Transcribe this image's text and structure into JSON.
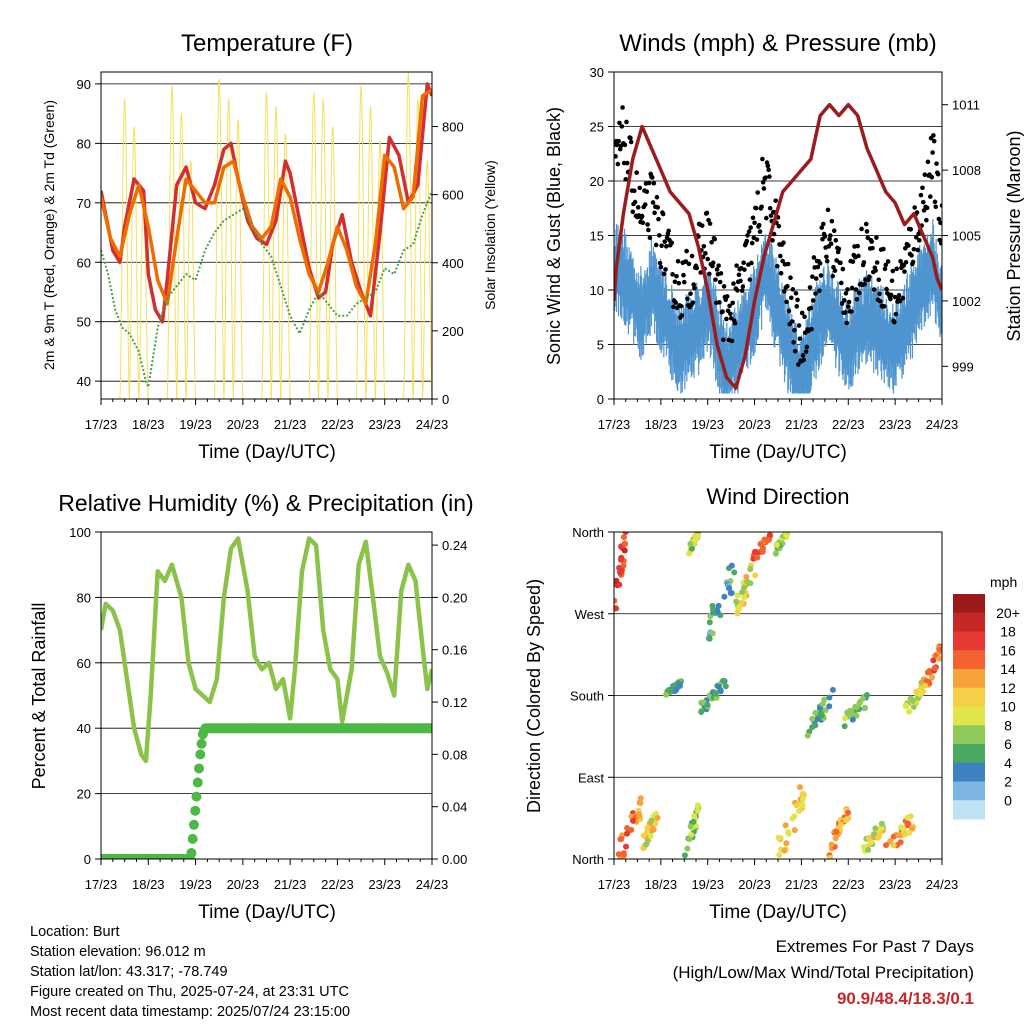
{
  "x_tick_labels": [
    "17/23",
    "18/23",
    "19/23",
    "20/23",
    "21/23",
    "22/23",
    "23/23",
    "24/23"
  ],
  "info": {
    "location": "Location: Burt",
    "elevation": "Station elevation: 96.012 m",
    "latlon": "Station lat/lon: 43.317; -78.749",
    "created": "Figure created on Thu, 2025-07-24, at 23:31 UTC",
    "timestamp": "Most recent data timestamp: 2025/07/24 23:15:00"
  },
  "extremes": {
    "title": "Extremes For Past 7 Days",
    "subtitle": "(High/Low/Max Wind/Total Precipitation)",
    "values": "90.9/48.4/18.3/0.1"
  },
  "chart_data": [
    {
      "type": "line",
      "title": "Temperature (F)",
      "xlabel": "Time (Day/UTC)",
      "ylabel": "2m & 9m T (Red, Orange) & 2m Td (Green)",
      "y2label": "Solar Insolation (Yellow)",
      "xlim": [
        0,
        7
      ],
      "ylim": [
        37,
        92
      ],
      "y2lim": [
        0,
        960
      ],
      "yticks": [
        40,
        50,
        60,
        70,
        80,
        90
      ],
      "y2ticks": [
        0,
        200,
        400,
        600,
        800
      ],
      "grid": true,
      "series": [
        {
          "key": "t2m",
          "color": "#d32f2f",
          "x": [
            0,
            0.1,
            0.25,
            0.4,
            0.5,
            0.7,
            0.9,
            1.0,
            1.15,
            1.3,
            1.4,
            1.6,
            1.8,
            2.0,
            2.2,
            2.4,
            2.6,
            2.75,
            2.9,
            3.1,
            3.3,
            3.5,
            3.7,
            3.9,
            4.0,
            4.2,
            4.4,
            4.6,
            4.75,
            4.9,
            5.1,
            5.3,
            5.5,
            5.7,
            5.9,
            6.1,
            6.3,
            6.5,
            6.7,
            6.9,
            7.0
          ],
          "y": [
            72,
            68,
            62,
            60,
            66,
            74,
            72,
            58,
            52,
            50,
            57,
            73,
            76,
            70,
            69,
            73,
            79,
            80,
            74,
            67,
            64,
            63,
            67,
            77,
            75,
            67,
            59,
            54,
            55,
            63,
            68,
            60,
            55,
            51,
            65,
            81,
            78,
            70,
            73,
            90,
            88
          ]
        },
        {
          "key": "t9m",
          "color": "#ef6c00",
          "x": [
            0,
            0.2,
            0.4,
            0.6,
            0.8,
            1.0,
            1.2,
            1.4,
            1.6,
            1.8,
            2.0,
            2.2,
            2.4,
            2.6,
            2.8,
            3.0,
            3.2,
            3.4,
            3.6,
            3.8,
            4.0,
            4.2,
            4.4,
            4.6,
            4.8,
            5.0,
            5.2,
            5.4,
            5.6,
            5.8,
            6.0,
            6.2,
            6.4,
            6.6,
            6.8,
            7.0
          ],
          "y": [
            71,
            64,
            61,
            68,
            73,
            66,
            57,
            53,
            64,
            74,
            72,
            70,
            70,
            76,
            77,
            71,
            66,
            64,
            66,
            74,
            71,
            64,
            58,
            55,
            60,
            66,
            62,
            56,
            53,
            63,
            78,
            76,
            69,
            71,
            88,
            89
          ]
        },
        {
          "key": "td",
          "color": "#43a047",
          "x": [
            0,
            0.15,
            0.3,
            0.45,
            0.6,
            0.8,
            0.95,
            1.0,
            1.2,
            1.4,
            1.6,
            1.8,
            2.0,
            2.2,
            2.4,
            2.6,
            2.8,
            3.0,
            3.2,
            3.4,
            3.6,
            3.8,
            4.0,
            4.2,
            4.4,
            4.6,
            4.8,
            5.0,
            5.2,
            5.4,
            5.6,
            5.8,
            6.0,
            6.2,
            6.4,
            6.6,
            6.8,
            7.0
          ],
          "y": [
            62,
            58,
            52,
            49,
            48,
            45,
            40,
            39,
            49,
            54,
            56,
            58,
            57,
            62,
            65,
            67,
            68,
            69,
            66,
            63,
            61,
            56,
            51,
            48,
            52,
            55,
            53,
            51,
            51,
            53,
            54,
            55,
            59,
            58,
            62,
            63,
            68,
            72
          ]
        }
      ],
      "solar": {
        "key": "solar",
        "color": "#f5e05a",
        "days": [
          {
            "start": 0.4,
            "end": 1.0,
            "peaks": [
              880,
              800,
              600
            ]
          },
          {
            "start": 1.4,
            "end": 2.0,
            "peaks": [
              920,
              840,
              700
            ]
          },
          {
            "start": 2.4,
            "end": 3.0,
            "peaks": [
              940,
              880,
              820
            ]
          },
          {
            "start": 3.4,
            "end": 4.0,
            "peaks": [
              900,
              860,
              780
            ]
          },
          {
            "start": 4.4,
            "end": 5.0,
            "peaks": [
              900,
              880,
              800
            ]
          },
          {
            "start": 5.4,
            "end": 6.0,
            "peaks": [
              920,
              860,
              760
            ]
          },
          {
            "start": 6.4,
            "end": 7.0,
            "peaks": [
              960,
              880,
              700
            ]
          }
        ]
      }
    },
    {
      "type": "scatter",
      "title": "Winds (mph) & Pressure (mb)",
      "xlabel": "Time (Day/UTC)",
      "ylabel": "Sonic Wind & Gust (Blue, Black)",
      "y2label": "Station Pressure (Maroon)",
      "xlim": [
        0,
        7
      ],
      "ylim": [
        0,
        30
      ],
      "y2lim": [
        997.5,
        1012.5
      ],
      "yticks": [
        0,
        5,
        10,
        15,
        20,
        25,
        30
      ],
      "y2ticks": [
        999,
        1002,
        1005,
        1008,
        1011
      ],
      "grid": true,
      "wind": {
        "key": "wind",
        "color": "#4f95d0",
        "x": [
          0,
          0.2,
          0.4,
          0.6,
          0.8,
          1.0,
          1.2,
          1.4,
          1.6,
          1.8,
          2.0,
          2.2,
          2.4,
          2.6,
          2.8,
          3.0,
          3.2,
          3.4,
          3.6,
          3.8,
          4.0,
          4.2,
          4.4,
          4.6,
          4.8,
          5.0,
          5.2,
          5.4,
          5.6,
          5.8,
          6.0,
          6.2,
          6.4,
          6.6,
          6.8,
          7.0
        ],
        "y": [
          14,
          13,
          11,
          9,
          12,
          10,
          8,
          6,
          7,
          8,
          10,
          7,
          4,
          6,
          8,
          10,
          13,
          11,
          8,
          5,
          3,
          6,
          9,
          10,
          8,
          6,
          8,
          9,
          8,
          7,
          6,
          8,
          10,
          12,
          14,
          10
        ]
      },
      "gust": {
        "key": "gust",
        "color": "#000000",
        "x": [
          0,
          0.2,
          0.4,
          0.6,
          0.8,
          1.0,
          1.2,
          1.4,
          1.6,
          1.8,
          2.0,
          2.2,
          2.4,
          2.6,
          2.8,
          3.0,
          3.2,
          3.4,
          3.6,
          3.8,
          4.0,
          4.2,
          4.4,
          4.6,
          4.8,
          5.0,
          5.2,
          5.4,
          5.6,
          5.8,
          6.0,
          6.2,
          6.4,
          6.6,
          6.8,
          7.0
        ],
        "y": [
          21,
          24,
          20,
          16,
          18,
          15,
          12,
          10,
          11,
          13,
          15,
          11,
          7,
          9,
          12,
          15,
          20,
          17,
          12,
          8,
          5,
          9,
          13,
          15,
          12,
          9,
          12,
          14,
          12,
          11,
          9,
          12,
          15,
          18,
          22,
          15
        ]
      },
      "pressure": {
        "key": "pressure",
        "color": "#9b1c1c",
        "x": [
          0,
          0.05,
          0.2,
          0.4,
          0.6,
          0.8,
          1.0,
          1.2,
          1.4,
          1.6,
          1.8,
          2.0,
          2.2,
          2.4,
          2.6,
          2.8,
          3.0,
          3.2,
          3.4,
          3.6,
          3.8,
          4.0,
          4.2,
          4.4,
          4.6,
          4.8,
          5.0,
          5.2,
          5.4,
          5.6,
          5.8,
          6.0,
          6.2,
          6.4,
          6.6,
          6.8,
          6.9,
          7.0
        ],
        "y": [
          1002,
          1003.5,
          1006,
          1008.5,
          1010,
          1009,
          1008,
          1007,
          1006.5,
          1006,
          1004.5,
          1002.5,
          1000,
          998.5,
          998,
          999.5,
          1002,
          1004,
          1005.5,
          1007,
          1007.5,
          1008,
          1008.5,
          1010.5,
          1011,
          1010.5,
          1011,
          1010.5,
          1009,
          1008,
          1007,
          1006.5,
          1005.5,
          1006,
          1005,
          1004,
          1003,
          1002.5
        ]
      }
    },
    {
      "type": "line",
      "title": "Relative Humidity (%) & Precipitation (in)",
      "xlabel": "Time (Day/UTC)",
      "ylabel": "Percent & Total Rainfall",
      "xlim": [
        0,
        7
      ],
      "ylim": [
        0,
        100
      ],
      "y2lim": [
        0,
        0.25
      ],
      "yticks": [
        0,
        20,
        40,
        60,
        80,
        100
      ],
      "y2ticks": [
        0.0,
        0.04,
        0.08,
        0.12,
        0.16,
        0.2,
        0.24
      ],
      "grid": true,
      "series": [
        {
          "key": "rh",
          "color": "#8bc34a",
          "x": [
            0,
            0.1,
            0.25,
            0.4,
            0.55,
            0.7,
            0.85,
            0.95,
            1.05,
            1.2,
            1.35,
            1.5,
            1.7,
            1.85,
            2.0,
            2.15,
            2.3,
            2.45,
            2.6,
            2.75,
            2.9,
            3.1,
            3.25,
            3.4,
            3.55,
            3.7,
            3.85,
            4.0,
            4.1,
            4.25,
            4.4,
            4.55,
            4.7,
            4.85,
            5.0,
            5.1,
            5.3,
            5.45,
            5.6,
            5.75,
            5.9,
            6.05,
            6.2,
            6.35,
            6.5,
            6.65,
            6.8,
            6.9,
            7.0
          ],
          "y": [
            70,
            78,
            76,
            70,
            55,
            40,
            32,
            30,
            50,
            88,
            85,
            90,
            80,
            60,
            52,
            50,
            48,
            55,
            80,
            95,
            98,
            82,
            62,
            58,
            60,
            52,
            55,
            43,
            58,
            88,
            98,
            96,
            70,
            58,
            55,
            42,
            58,
            90,
            97,
            80,
            62,
            57,
            50,
            82,
            90,
            85,
            65,
            52,
            58
          ]
        },
        {
          "key": "precip",
          "color": "#4cb944",
          "x": [
            0,
            1.0,
            1.9,
            1.95,
            2.0,
            2.05,
            2.1,
            2.15,
            2.2,
            2.3,
            3.0,
            4.0,
            5.0,
            6.0,
            7.0
          ],
          "y": [
            0,
            0,
            0,
            0.02,
            0.04,
            0.06,
            0.08,
            0.095,
            0.1,
            0.1,
            0.1,
            0.1,
            0.1,
            0.1,
            0.1
          ]
        }
      ]
    },
    {
      "type": "scatter",
      "title": "Wind Direction",
      "xlabel": "Time (Day/UTC)",
      "ylabel": "Direction (Colored By Speed)",
      "xlim": [
        0,
        7
      ],
      "ylim": [
        0,
        360
      ],
      "yticks": [
        0,
        90,
        180,
        270,
        360
      ],
      "ytick_labels": [
        "North",
        "East",
        "South",
        "West",
        "North"
      ],
      "grid": true,
      "colorbar": {
        "title": "mph",
        "labels": [
          "20+",
          "18",
          "16",
          "14",
          "12",
          "10",
          "8",
          "6",
          "4",
          "2",
          "0"
        ],
        "colors": [
          "#9e1a1a",
          "#c62828",
          "#e53935",
          "#f4622f",
          "#f7a23a",
          "#f5cf45",
          "#e0e64a",
          "#8fc95a",
          "#49a861",
          "#3e82c2",
          "#7db5e3",
          "#c1e2f5"
        ]
      },
      "clusters": [
        {
          "x": [
            0.0,
            0.25
          ],
          "y": [
            280,
            355
          ],
          "speed": 16
        },
        {
          "x": [
            0.1,
            0.6
          ],
          "y": [
            5,
            60
          ],
          "speed": 13
        },
        {
          "x": [
            0.6,
            0.95
          ],
          "y": [
            15,
            50
          ],
          "speed": 9
        },
        {
          "x": [
            1.1,
            1.45
          ],
          "y": [
            180,
            195
          ],
          "speed": 4
        },
        {
          "x": [
            1.5,
            1.8
          ],
          "y": [
            5,
            50
          ],
          "speed": 6
        },
        {
          "x": [
            1.6,
            1.8
          ],
          "y": [
            340,
            360
          ],
          "speed": 7
        },
        {
          "x": [
            1.85,
            2.4
          ],
          "y": [
            165,
            195
          ],
          "speed": 4
        },
        {
          "x": [
            2.0,
            2.6
          ],
          "y": [
            250,
            320
          ],
          "speed": 3
        },
        {
          "x": [
            2.6,
            3.05
          ],
          "y": [
            270,
            330
          ],
          "speed": 9
        },
        {
          "x": [
            2.95,
            3.35
          ],
          "y": [
            330,
            355
          ],
          "speed": 14
        },
        {
          "x": [
            3.45,
            3.7
          ],
          "y": [
            340,
            360
          ],
          "speed": 6
        },
        {
          "x": [
            3.5,
            4.1
          ],
          "y": [
            5,
            80
          ],
          "speed": 10
        },
        {
          "x": [
            4.1,
            4.7
          ],
          "y": [
            140,
            180
          ],
          "speed": 4
        },
        {
          "x": [
            4.6,
            5.0
          ],
          "y": [
            10,
            55
          ],
          "speed": 12
        },
        {
          "x": [
            4.9,
            5.5
          ],
          "y": [
            150,
            180
          ],
          "speed": 5
        },
        {
          "x": [
            5.3,
            5.8
          ],
          "y": [
            10,
            40
          ],
          "speed": 9
        },
        {
          "x": [
            5.8,
            6.4
          ],
          "y": [
            5,
            45
          ],
          "speed": 11
        },
        {
          "x": [
            6.2,
            6.6
          ],
          "y": [
            160,
            190
          ],
          "speed": 8
        },
        {
          "x": [
            6.6,
            7.0
          ],
          "y": [
            190,
            230
          ],
          "speed": 13
        }
      ]
    }
  ]
}
